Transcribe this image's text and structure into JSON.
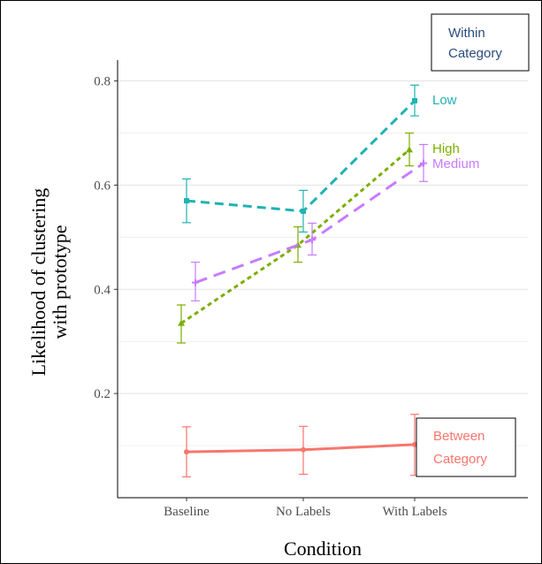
{
  "chart_data": {
    "type": "line",
    "xlabel": "Condition",
    "ylabel": "Likelihood of clustering with prototype",
    "ylabel_lines": [
      "Likelihood of clustering",
      "with prototype"
    ],
    "categories": [
      "Baseline",
      "No Labels",
      "With Labels"
    ],
    "yticks": [
      0.2,
      0.4,
      0.6,
      0.8
    ],
    "ylim": [
      0.0,
      0.84
    ],
    "grid": true,
    "series": [
      {
        "name": "Low",
        "color": "#20B2B2",
        "dash": "10 6",
        "marker": "square",
        "values": [
          0.57,
          0.55,
          0.762
        ],
        "err_low": [
          0.528,
          0.51,
          0.733
        ],
        "err_high": [
          0.612,
          0.59,
          0.792
        ]
      },
      {
        "name": "High",
        "color": "#7CAE00",
        "dash": "5 4",
        "marker": "triangle",
        "values": [
          0.335,
          0.485,
          0.668
        ],
        "err_low": [
          0.297,
          0.452,
          0.637
        ],
        "err_high": [
          0.37,
          0.52,
          0.7
        ]
      },
      {
        "name": "Medium",
        "color": "#C77CFF",
        "dash": "14 8",
        "marker": "plus",
        "values": [
          0.413,
          0.495,
          0.642
        ],
        "err_low": [
          0.378,
          0.466,
          0.607
        ],
        "err_high": [
          0.452,
          0.527,
          0.678
        ]
      },
      {
        "name": "Between Category",
        "color": "#F8766D",
        "dash": "",
        "marker": "circle",
        "values": [
          0.088,
          0.092,
          0.102
        ],
        "err_low": [
          0.04,
          0.045,
          0.043
        ],
        "err_high": [
          0.136,
          0.137,
          0.16
        ]
      }
    ],
    "annotations": {
      "within_box": [
        "Within",
        "Category"
      ],
      "within_color": "#2B4C7E",
      "low": "Low",
      "high": "High",
      "medium": "Medium",
      "between_box": [
        "Between",
        "Category"
      ]
    }
  }
}
